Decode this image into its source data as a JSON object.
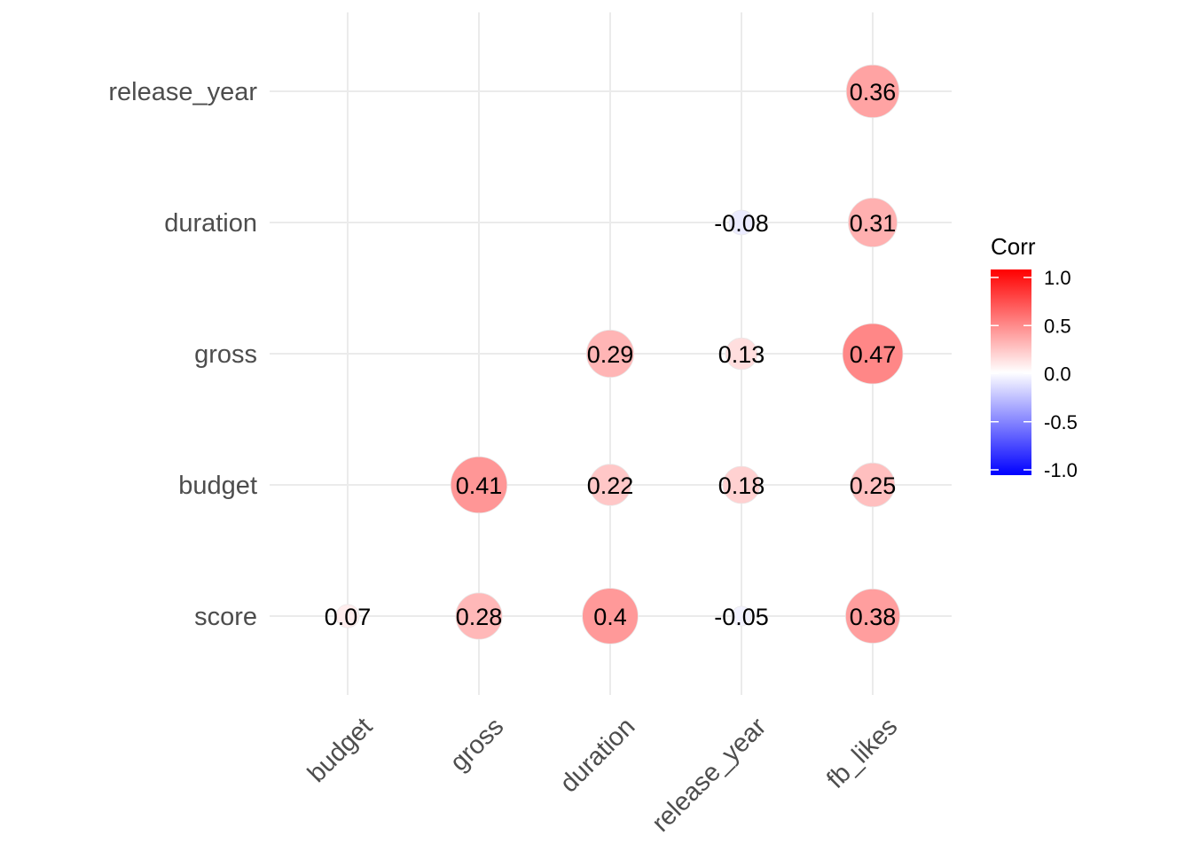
{
  "chart_data": {
    "type": "heatmap",
    "marker": "circle",
    "x_categories": [
      "budget",
      "gross",
      "duration",
      "release_year",
      "fb_likes"
    ],
    "y_categories": [
      "score",
      "budget",
      "gross",
      "duration",
      "release_year"
    ],
    "cells": [
      {
        "x": "budget",
        "y": "score",
        "value": 0.07,
        "label": "0.07"
      },
      {
        "x": "gross",
        "y": "score",
        "value": 0.28,
        "label": "0.28"
      },
      {
        "x": "duration",
        "y": "score",
        "value": 0.4,
        "label": "0.4"
      },
      {
        "x": "release_year",
        "y": "score",
        "value": -0.05,
        "label": "-0.05"
      },
      {
        "x": "fb_likes",
        "y": "score",
        "value": 0.38,
        "label": "0.38"
      },
      {
        "x": "gross",
        "y": "budget",
        "value": 0.41,
        "label": "0.41"
      },
      {
        "x": "duration",
        "y": "budget",
        "value": 0.22,
        "label": "0.22"
      },
      {
        "x": "release_year",
        "y": "budget",
        "value": 0.18,
        "label": "0.18"
      },
      {
        "x": "fb_likes",
        "y": "budget",
        "value": 0.25,
        "label": "0.25"
      },
      {
        "x": "duration",
        "y": "gross",
        "value": 0.29,
        "label": "0.29"
      },
      {
        "x": "release_year",
        "y": "gross",
        "value": 0.13,
        "label": "0.13"
      },
      {
        "x": "fb_likes",
        "y": "gross",
        "value": 0.47,
        "label": "0.47"
      },
      {
        "x": "release_year",
        "y": "duration",
        "value": -0.08,
        "label": "-0.08"
      },
      {
        "x": "fb_likes",
        "y": "duration",
        "value": 0.31,
        "label": "0.31"
      },
      {
        "x": "fb_likes",
        "y": "release_year",
        "value": 0.36,
        "label": "0.36"
      }
    ],
    "legend": {
      "title": "Corr",
      "placement": "right",
      "ticks": [
        1.0,
        0.5,
        0.0,
        -0.5,
        -1.0
      ],
      "tick_labels": [
        "1.0",
        "0.5",
        "0.0",
        "-0.5",
        "-1.0"
      ],
      "colors": {
        "low": "#0000ff",
        "mid": "#ffffff",
        "high": "#ff0000"
      },
      "range": [
        -1,
        1
      ]
    },
    "grid": true,
    "x_tick_rotation": "45deg"
  }
}
